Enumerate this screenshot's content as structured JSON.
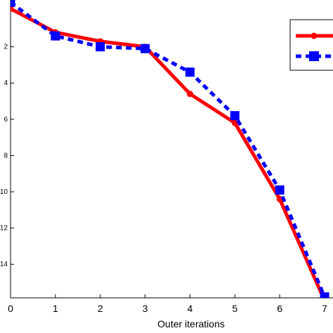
{
  "chart_data": {
    "type": "line",
    "xlabel": "Outer iterations",
    "ylabel": "",
    "x": [
      0,
      1,
      2,
      3,
      4,
      5,
      6,
      7
    ],
    "xticks": [
      "0",
      "1",
      "2",
      "3",
      "4",
      "5",
      "6",
      "7"
    ],
    "yticks": [
      {
        "value": -2,
        "label": "2"
      },
      {
        "value": -4,
        "label": "4"
      },
      {
        "value": -6,
        "label": "6"
      },
      {
        "value": -8,
        "label": "8"
      },
      {
        "value": -10,
        "label": "10"
      },
      {
        "value": -12,
        "label": "12"
      },
      {
        "value": -14,
        "label": "14"
      }
    ],
    "xlim": [
      0,
      7
    ],
    "ylim": [
      -14,
      0
    ],
    "grid": false,
    "legend": "top-right",
    "series": [
      {
        "style": "solid-circle",
        "color": "#ff0000",
        "values": [
          0.1,
          -1.2,
          -1.7,
          -2.0,
          -4.6,
          -6.2,
          -10.4,
          -16.0
        ]
      },
      {
        "style": "dashed-square",
        "color": "#0000ff",
        "values": [
          0.45,
          -1.4,
          -2.0,
          -2.1,
          -3.4,
          -5.8,
          -9.9,
          -15.8
        ]
      }
    ]
  }
}
